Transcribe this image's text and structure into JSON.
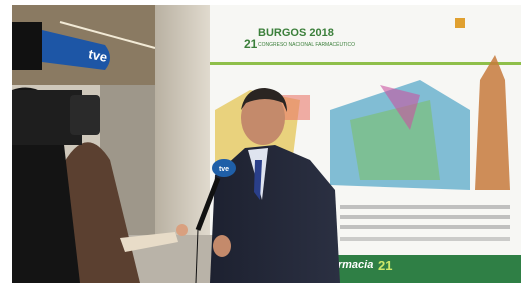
{
  "banner": {
    "city_year": "BURGOS 2018",
    "edition": "21",
    "subtitle": "CONGRESO NACIONAL FARMACÉUTICO"
  },
  "footer": {
    "brand": "Farmacia",
    "brand_number": "21"
  },
  "camera": {
    "logo": "tve"
  },
  "microphone": {
    "logo": "tve"
  }
}
